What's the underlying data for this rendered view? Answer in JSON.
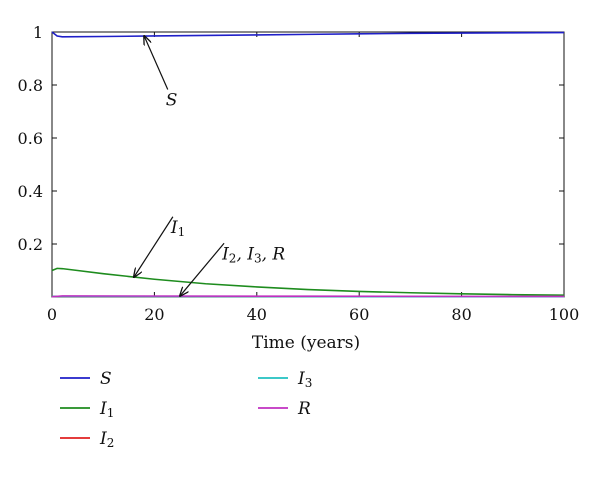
{
  "chart_data": {
    "type": "line",
    "title": "",
    "xlabel": "Time (years)",
    "ylabel": "",
    "xlim": [
      0,
      100
    ],
    "ylim": [
      0,
      1
    ],
    "xticks": [
      0,
      20,
      40,
      60,
      80,
      100
    ],
    "xtick_labels": [
      "0",
      "20",
      "40",
      "60",
      "80",
      "100"
    ],
    "yticks": [
      0.2,
      0.4,
      0.6,
      0.8,
      1
    ],
    "ytick_labels": [
      "0.2",
      "0.4",
      "0.6",
      "0.8",
      "1"
    ],
    "grid": false,
    "legend_position": "below",
    "series": [
      {
        "name": "S",
        "color": "#1f1fc8",
        "x": [
          0,
          1,
          2,
          10,
          20,
          30,
          40,
          50,
          60,
          70,
          80,
          90,
          100
        ],
        "y": [
          1.0,
          0.985,
          0.982,
          0.983,
          0.985,
          0.987,
          0.989,
          0.991,
          0.993,
          0.995,
          0.996,
          0.997,
          0.998
        ]
      },
      {
        "name": "I1",
        "color": "#1e8c1e",
        "x": [
          0,
          1,
          2,
          5,
          10,
          20,
          30,
          40,
          50,
          60,
          70,
          80,
          90,
          100
        ],
        "y": [
          0.1,
          0.108,
          0.107,
          0.1,
          0.088,
          0.067,
          0.05,
          0.038,
          0.028,
          0.021,
          0.016,
          0.012,
          0.009,
          0.007
        ]
      },
      {
        "name": "I2",
        "color": "#e02020",
        "x": [
          0,
          100
        ],
        "y": [
          0.002,
          0.001
        ]
      },
      {
        "name": "I3",
        "color": "#20c0c0",
        "x": [
          0,
          100
        ],
        "y": [
          0.002,
          0.001
        ]
      },
      {
        "name": "R",
        "color": "#c030c0",
        "x": [
          0,
          2,
          50,
          100
        ],
        "y": [
          0.001,
          0.004,
          0.003,
          0.002
        ]
      }
    ],
    "annotations": [
      {
        "text": "S",
        "arrow_to": [
          18,
          0.985
        ],
        "label_at": [
          23,
          0.73
        ]
      },
      {
        "text": "I1",
        "arrow_to": [
          16,
          0.075
        ],
        "label_at": [
          24,
          0.25
        ]
      },
      {
        "text": "I2, I3, R",
        "arrow_to": [
          25,
          0.004
        ],
        "label_at": [
          34,
          0.15
        ]
      }
    ]
  },
  "legend": [
    {
      "base": "S",
      "sub": "",
      "color": "#1f1fc8"
    },
    {
      "base": "I",
      "sub": "3",
      "color": "#20c0c0"
    },
    {
      "base": "I",
      "sub": "1",
      "color": "#1e8c1e"
    },
    {
      "base": "R",
      "sub": "",
      "color": "#c030c0"
    },
    {
      "base": "I",
      "sub": "2",
      "color": "#e02020"
    }
  ]
}
